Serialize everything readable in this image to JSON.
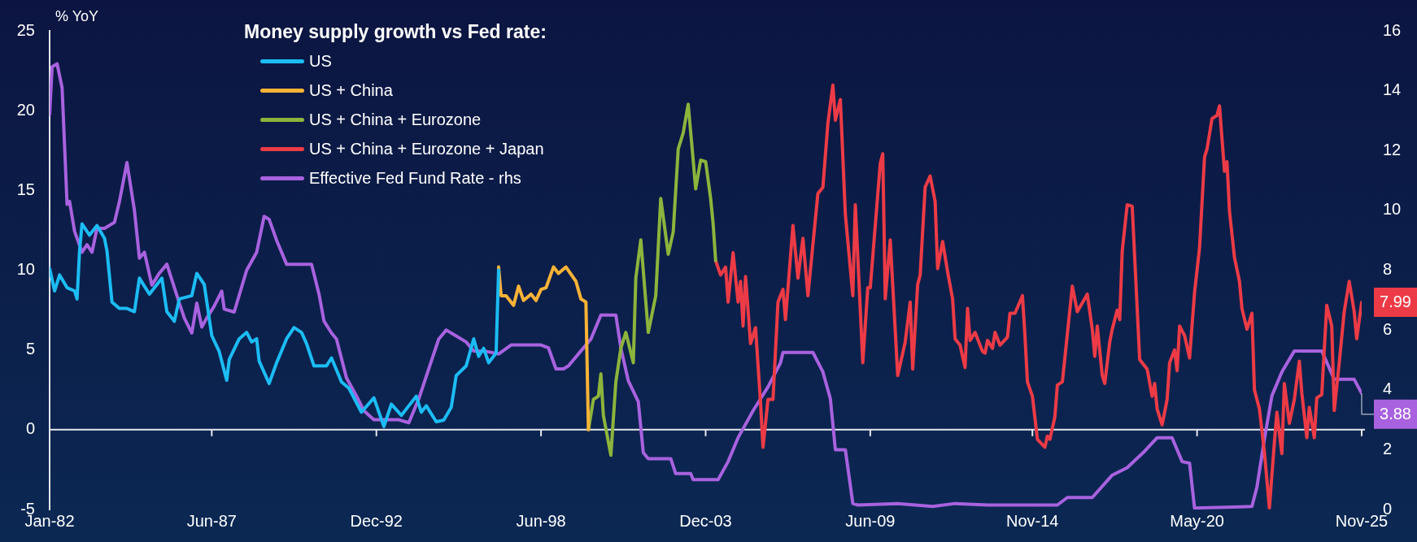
{
  "chart_data": {
    "type": "line",
    "ylabel": "% YoY",
    "legend_title": "Money supply growth vs Fed rate:",
    "legend": "top left",
    "xlim": [
      "1982-01",
      "2025-11"
    ],
    "xticks": [
      {
        "value": "1982-01",
        "label": "Jan-82"
      },
      {
        "value": "1987-06",
        "label": "Jun-87"
      },
      {
        "value": "1992-12",
        "label": "Dec-92"
      },
      {
        "value": "1998-06",
        "label": "Jun-98"
      },
      {
        "value": "2003-12",
        "label": "Dec-03"
      },
      {
        "value": "2009-06",
        "label": "Jun-09"
      },
      {
        "value": "2014-11",
        "label": "Nov-14"
      },
      {
        "value": "2020-05",
        "label": "May-20"
      },
      {
        "value": "2025-11",
        "label": "Nov-25"
      }
    ],
    "ylim": [
      -5,
      25
    ],
    "yticks": [
      -5,
      0,
      5,
      10,
      15,
      20,
      25
    ],
    "y2lim": [
      0,
      16
    ],
    "y2ticks": [
      0,
      2,
      4,
      6,
      8,
      10,
      12,
      14,
      16
    ],
    "series": [
      {
        "name": "US",
        "color": "#1cbcf4",
        "x": [
          "1982-01",
          "1982-03",
          "1982-05",
          "1982-08",
          "1982-11",
          "1982-12",
          "1983-01",
          "1983-02",
          "1983-05",
          "1983-08",
          "1983-11",
          "1983-12",
          "1984-02",
          "1984-05",
          "1984-08",
          "1984-11",
          "1985-01",
          "1985-05",
          "1985-08",
          "1985-10",
          "1985-12",
          "1986-03",
          "1986-05",
          "1986-10",
          "1986-12",
          "1987-03",
          "1987-06",
          "1987-09",
          "1987-12",
          "1988-01",
          "1988-05",
          "1988-08",
          "1988-10",
          "1988-12",
          "1989-01",
          "1989-05",
          "1989-08",
          "1989-12",
          "1990-03",
          "1990-06",
          "1990-08",
          "1990-11",
          "1991-04",
          "1991-06",
          "1991-10",
          "1992-01",
          "1992-06",
          "1992-11",
          "1993-03",
          "1993-06",
          "1993-10",
          "1994-01",
          "1994-04",
          "1994-06",
          "1994-08",
          "1994-12",
          "1995-03",
          "1995-06",
          "1995-08",
          "1995-12",
          "1996-03",
          "1996-05",
          "1996-07",
          "1996-09",
          "1996-12",
          "1997-01"
        ],
        "values": [
          10.1,
          8.7,
          9.7,
          8.9,
          8.7,
          8.2,
          11.2,
          12.9,
          12.2,
          12.8,
          12.0,
          11.2,
          8.0,
          7.6,
          7.6,
          7.4,
          9.5,
          8.5,
          9.1,
          9.5,
          7.4,
          6.8,
          8.2,
          8.4,
          9.8,
          9.1,
          5.9,
          4.9,
          3.1,
          4.4,
          5.7,
          6.1,
          5.5,
          5.7,
          4.3,
          2.9,
          4.2,
          5.7,
          6.4,
          6.1,
          5.4,
          4.0,
          4.0,
          4.5,
          3.0,
          2.6,
          1.1,
          2.0,
          0.2,
          1.6,
          0.9,
          1.5,
          2.1,
          1.1,
          1.5,
          0.5,
          0.6,
          1.4,
          3.4,
          4.0,
          5.7,
          4.6,
          5.1,
          4.2,
          4.8,
          10.0
        ]
      },
      {
        "name": "US + China",
        "color": "#fbb336",
        "x": [
          "1997-01",
          "1997-02",
          "1997-04",
          "1997-07",
          "1997-09",
          "1997-11",
          "1998-02",
          "1998-04",
          "1998-06",
          "1998-08",
          "1998-11",
          "1999-01",
          "1999-04",
          "1999-08",
          "1999-10",
          "1999-12",
          "2000-01"
        ],
        "values": [
          10.2,
          8.4,
          8.4,
          7.8,
          9.0,
          8.1,
          8.5,
          8.1,
          8.8,
          8.9,
          10.2,
          9.8,
          10.2,
          9.3,
          8.2,
          8.0,
          0.0
        ]
      },
      {
        "name": "US + China + Eurozone",
        "color": "#8db43c",
        "x": [
          "2000-01",
          "2000-03",
          "2000-05",
          "2000-06",
          "2000-07",
          "2000-10",
          "2000-12",
          "2001-02",
          "2001-04",
          "2001-07",
          "2001-08",
          "2001-10",
          "2002-01",
          "2002-04",
          "2002-06",
          "2002-09",
          "2002-11",
          "2003-01",
          "2003-03",
          "2003-05",
          "2003-07",
          "2003-08",
          "2003-10",
          "2003-12",
          "2004-02",
          "2004-03",
          "2004-04"
        ],
        "values": [
          0.0,
          1.9,
          2.1,
          3.5,
          0.9,
          -1.6,
          3.0,
          5.1,
          6.1,
          4.2,
          9.5,
          11.9,
          6.1,
          8.4,
          14.5,
          11.0,
          12.4,
          17.6,
          18.6,
          20.4,
          16.9,
          15.1,
          16.9,
          16.8,
          14.5,
          12.9,
          10.6
        ]
      },
      {
        "name": "US + China + Eurozone + Japan",
        "color": "#ec3b46",
        "x": [
          "2004-04",
          "2004-06",
          "2004-08",
          "2004-09",
          "2004-11",
          "2005-01",
          "2005-02",
          "2005-03",
          "2005-04",
          "2005-06",
          "2005-08",
          "2005-10",
          "2005-11",
          "2006-01",
          "2006-03",
          "2006-05",
          "2006-07",
          "2006-08",
          "2006-11",
          "2007-01",
          "2007-03",
          "2007-05",
          "2007-09",
          "2007-11",
          "2008-01",
          "2008-03",
          "2008-04",
          "2008-06",
          "2008-08",
          "2008-11",
          "2008-12",
          "2009-03",
          "2009-05",
          "2009-06",
          "2009-10",
          "2009-11",
          "2009-12",
          "2010-02",
          "2010-05",
          "2010-08",
          "2010-10",
          "2010-11",
          "2011-01",
          "2011-02",
          "2011-04",
          "2011-06",
          "2011-08",
          "2011-09",
          "2011-11",
          "2012-01",
          "2012-03",
          "2012-04",
          "2012-06",
          "2012-08",
          "2012-09",
          "2012-10",
          "2012-12",
          "2013-03",
          "2013-04",
          "2013-05",
          "2013-07",
          "2013-08",
          "2013-10",
          "2014-01",
          "2014-02",
          "2014-04",
          "2014-07",
          "2014-08",
          "2014-09",
          "2014-11",
          "2015-01",
          "2015-04",
          "2015-05",
          "2015-06",
          "2015-08",
          "2015-09",
          "2015-11",
          "2016-03",
          "2016-05",
          "2016-09",
          "2016-11",
          "2016-12",
          "2017-01",
          "2017-03",
          "2017-04",
          "2017-06",
          "2017-07",
          "2017-09",
          "2017-10",
          "2017-11",
          "2018-01",
          "2018-03",
          "2018-06",
          "2018-09",
          "2018-11",
          "2018-12",
          "2019-01",
          "2019-03",
          "2019-05",
          "2019-06",
          "2019-08",
          "2019-09",
          "2019-10",
          "2019-12",
          "2020-02",
          "2020-04",
          "2020-06",
          "2020-08",
          "2020-09",
          "2020-11",
          "2021-01",
          "2021-02",
          "2021-04",
          "2021-05",
          "2021-06",
          "2021-08",
          "2021-10",
          "2021-11",
          "2022-01",
          "2022-03",
          "2022-04",
          "2022-06",
          "2022-08",
          "2022-10",
          "2022-12",
          "2023-01",
          "2023-03",
          "2023-04",
          "2023-06",
          "2023-08",
          "2023-10",
          "2023-11",
          "2024-01",
          "2024-02",
          "2024-04",
          "2024-05",
          "2024-07",
          "2024-09",
          "2024-11",
          "2024-12",
          "2025-02",
          "2025-04",
          "2025-06",
          "2025-08",
          "2025-09",
          "2025-11"
        ],
        "values": [
          10.6,
          9.7,
          10.2,
          8.0,
          11.1,
          8.0,
          9.3,
          6.5,
          9.6,
          5.4,
          6.4,
          1.7,
          -1.1,
          1.9,
          1.9,
          8.0,
          8.8,
          6.9,
          12.8,
          9.5,
          12.0,
          8.4,
          14.8,
          15.2,
          19.2,
          21.6,
          19.4,
          20.7,
          13.5,
          8.4,
          14.1,
          4.2,
          8.9,
          8.9,
          16.7,
          17.3,
          8.2,
          11.9,
          3.4,
          5.5,
          8.0,
          3.8,
          9.1,
          9.7,
          15.2,
          15.9,
          14.3,
          10.1,
          11.8,
          9.9,
          8.2,
          5.7,
          5.3,
          3.9,
          7.6,
          5.6,
          6.1,
          4.9,
          4.8,
          5.6,
          5.1,
          6.1,
          5.3,
          5.8,
          7.3,
          7.3,
          8.4,
          5.9,
          3.0,
          2.1,
          -0.6,
          -1.1,
          -0.4,
          -0.6,
          0.8,
          2.8,
          3.0,
          9.0,
          7.4,
          8.5,
          6.3,
          4.6,
          6.5,
          3.4,
          2.9,
          5.5,
          6.3,
          7.5,
          6.9,
          11.2,
          14.1,
          14.0,
          4.4,
          3.8,
          2.1,
          2.9,
          1.3,
          0.3,
          1.9,
          4.2,
          5.0,
          3.7,
          6.5,
          5.9,
          4.5,
          8.6,
          11.4,
          17.1,
          17.6,
          19.5,
          19.7,
          20.3,
          16.2,
          16.8,
          13.7,
          10.8,
          9.3,
          7.6,
          6.3,
          7.3,
          2.5,
          1.3,
          -1.4,
          -4.9,
          -0.8,
          1.1,
          -1.5,
          2.9,
          0.4,
          1.9,
          4.3,
          2.3,
          -0.5,
          1.4,
          -0.5,
          2.0,
          2.2,
          7.8,
          6.5,
          1.2,
          4.2,
          7.4,
          9.3,
          7.4,
          5.7,
          7.99
        ],
        "value_labels": [
          null,
          null,
          null,
          null,
          null,
          null,
          null,
          null,
          null,
          null,
          null,
          null,
          null,
          null,
          null,
          null,
          null,
          null,
          null,
          null,
          null,
          null,
          null,
          null,
          null,
          null,
          null,
          null,
          null,
          null,
          null,
          null,
          null,
          null,
          null,
          null,
          null,
          null,
          null,
          null,
          null,
          null,
          null,
          null,
          null,
          null,
          null,
          null,
          null,
          null,
          null,
          null,
          null,
          null,
          null,
          null,
          null,
          null,
          null,
          null,
          null,
          null,
          null,
          null,
          null,
          null,
          null,
          null,
          null,
          null,
          null,
          null,
          null,
          null,
          null,
          null,
          null,
          null,
          null,
          null,
          null,
          null,
          null,
          null,
          null,
          null,
          null,
          null,
          null,
          null,
          null,
          null,
          null,
          null,
          null,
          null,
          null,
          null,
          null,
          null,
          null,
          null,
          null,
          null,
          null,
          null,
          null,
          null,
          null,
          null,
          null,
          null,
          null,
          null,
          null,
          null,
          null,
          null,
          null,
          null,
          null,
          null,
          null,
          null,
          null,
          null,
          null,
          null,
          null,
          null,
          null,
          null,
          null,
          null,
          null,
          null,
          null,
          null,
          null,
          null,
          null,
          null,
          null,
          null,
          null,
          "7.99"
        ]
      },
      {
        "name": "Effective Fed Fund Rate - rhs",
        "color": "#a862df",
        "axis": "y2",
        "x": [
          "1982-01",
          "1982-02",
          "1982-04",
          "1982-06",
          "1982-08",
          "1982-09",
          "1982-11",
          "1983-02",
          "1983-04",
          "1983-06",
          "1983-08",
          "1983-11",
          "1984-03",
          "1984-05",
          "1984-08",
          "1984-11",
          "1985-01",
          "1985-03",
          "1985-06",
          "1985-09",
          "1985-12",
          "1986-05",
          "1986-07",
          "1986-10",
          "1986-12",
          "1987-02",
          "1987-04",
          "1987-07",
          "1987-10",
          "1987-11",
          "1988-03",
          "1988-08",
          "1988-12",
          "1989-03",
          "1989-05",
          "1989-08",
          "1989-12",
          "1990-04",
          "1990-10",
          "1991-01",
          "1991-03",
          "1991-06",
          "1991-08",
          "1991-12",
          "1992-04",
          "1992-07",
          "1992-11",
          "1993-09",
          "1994-01",
          "1994-05",
          "1994-09",
          "1995-01",
          "1995-04",
          "1995-08",
          "1995-12",
          "1996-03",
          "1996-07",
          "1997-01",
          "1997-06",
          "1998-06",
          "1998-09",
          "1998-12",
          "1999-03",
          "1999-05",
          "1999-10",
          "2000-02",
          "2000-06",
          "2000-12",
          "2001-02",
          "2001-05",
          "2001-09",
          "2001-11",
          "2002-01",
          "2002-10",
          "2002-12",
          "2003-06",
          "2003-07",
          "2004-05",
          "2004-09",
          "2005-01",
          "2005-07",
          "2006-01",
          "2006-06",
          "2006-07",
          "2007-07",
          "2007-11",
          "2008-02",
          "2008-04",
          "2008-08",
          "2008-11",
          "2009-01",
          "2010-05",
          "2011-07",
          "2012-04",
          "2013-05",
          "2015-09",
          "2016-01",
          "2016-11",
          "2017-07",
          "2018-01",
          "2018-08",
          "2019-01",
          "2019-07",
          "2019-11",
          "2020-02",
          "2020-04",
          "2022-03",
          "2022-05",
          "2022-08",
          "2022-11",
          "2023-03",
          "2023-08",
          "2024-07",
          "2024-12",
          "2025-08",
          "2025-11"
        ],
        "values": [
          13.2,
          14.8,
          14.9,
          14.1,
          10.2,
          10.3,
          9.3,
          8.6,
          8.85,
          8.6,
          9.4,
          9.4,
          9.6,
          10.3,
          11.6,
          10.0,
          8.4,
          8.6,
          7.5,
          7.9,
          8.2,
          6.9,
          6.4,
          5.9,
          6.9,
          6.1,
          6.4,
          6.8,
          7.3,
          6.7,
          6.6,
          8.0,
          8.6,
          9.8,
          9.7,
          9.0,
          8.2,
          8.2,
          8.2,
          7.2,
          6.3,
          5.9,
          5.7,
          4.4,
          3.8,
          3.3,
          3.0,
          3.0,
          2.9,
          3.7,
          4.7,
          5.7,
          6.0,
          5.8,
          5.6,
          5.3,
          5.3,
          5.2,
          5.5,
          5.5,
          5.4,
          4.7,
          4.7,
          4.8,
          5.3,
          5.7,
          6.5,
          6.5,
          5.4,
          4.3,
          3.6,
          1.9,
          1.7,
          1.7,
          1.2,
          1.2,
          1.0,
          1.0,
          1.6,
          2.4,
          3.3,
          4.1,
          4.9,
          5.25,
          5.25,
          4.6,
          3.7,
          2.0,
          2.0,
          0.2,
          0.15,
          0.2,
          0.1,
          0.2,
          0.15,
          0.15,
          0.4,
          0.4,
          1.15,
          1.4,
          1.95,
          2.4,
          2.4,
          1.6,
          1.55,
          0.05,
          0.1,
          0.75,
          2.35,
          3.8,
          4.6,
          5.3,
          5.3,
          4.35,
          4.35,
          3.88
        ],
        "value_labels": [
          null,
          null,
          null,
          null,
          null,
          null,
          null,
          null,
          null,
          null,
          null,
          null,
          null,
          null,
          null,
          null,
          null,
          null,
          null,
          null,
          null,
          null,
          null,
          null,
          null,
          null,
          null,
          null,
          null,
          null,
          null,
          null,
          null,
          null,
          null,
          null,
          null,
          null,
          null,
          null,
          null,
          null,
          null,
          null,
          null,
          null,
          null,
          null,
          null,
          null,
          null,
          null,
          null,
          null,
          null,
          null,
          null,
          null,
          null,
          null,
          null,
          null,
          null,
          null,
          null,
          null,
          null,
          null,
          null,
          null,
          null,
          null,
          null,
          null,
          null,
          null,
          null,
          null,
          null,
          null,
          null,
          null,
          null,
          null,
          null,
          null,
          null,
          null,
          null,
          null,
          null,
          null,
          null,
          null,
          null,
          null,
          null,
          null,
          null,
          null,
          null,
          null,
          null,
          null,
          null,
          null,
          null,
          null,
          null,
          null,
          null,
          null,
          null,
          null,
          null,
          "3.88"
        ]
      }
    ]
  }
}
